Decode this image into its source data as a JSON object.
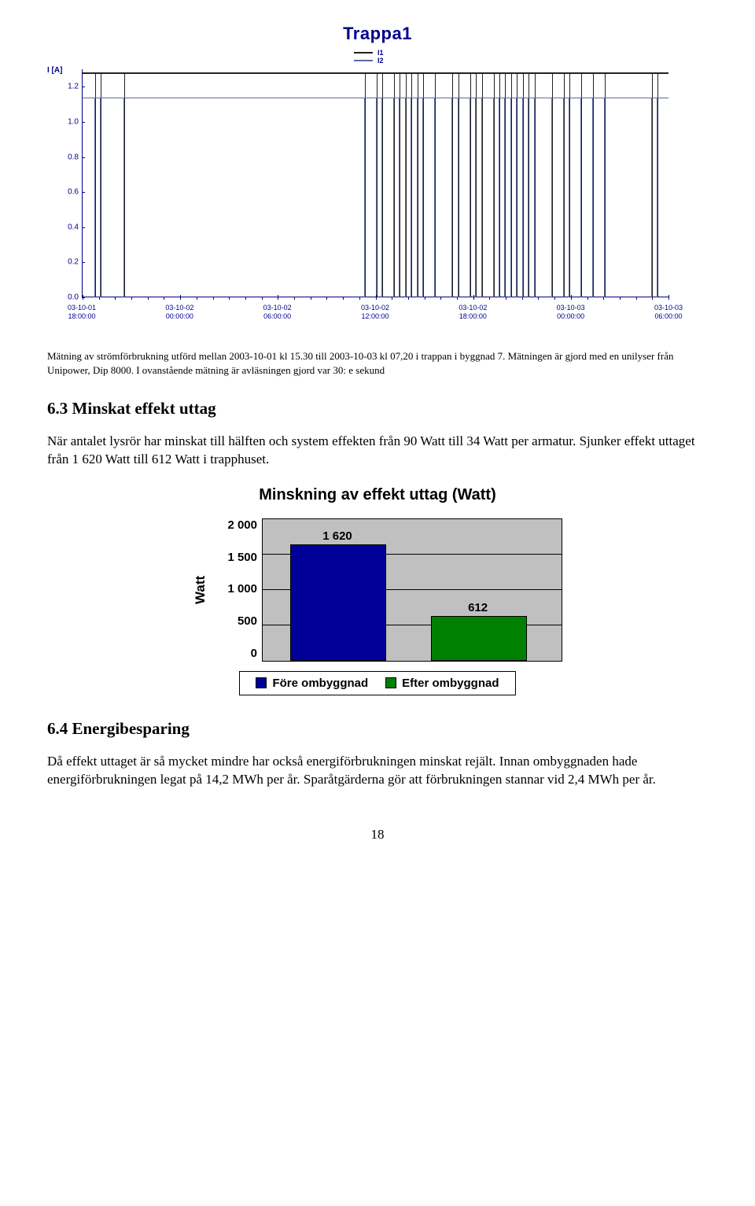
{
  "chart1": {
    "title": "Trappa1",
    "ylabel": "I [A]",
    "legend": [
      {
        "label": "I1",
        "color": "#222222"
      },
      {
        "label": "I2",
        "color": "#5b6aa0"
      }
    ],
    "y_ticks": [
      "1.2",
      "1.0",
      "0.8",
      "0.6",
      "0.4",
      "0.2",
      "0.0"
    ],
    "y_max": 1.3,
    "x_ticks": [
      {
        "date": "03-10-01",
        "time": "18:00:00"
      },
      {
        "date": "03-10-02",
        "time": "00:00:00"
      },
      {
        "date": "03-10-02",
        "time": "06:00:00"
      },
      {
        "date": "03-10-02",
        "time": "12:00:00"
      },
      {
        "date": "03-10-02",
        "time": "18:00:00"
      },
      {
        "date": "03-10-03",
        "time": "00:00:00"
      },
      {
        "date": "03-10-03",
        "time": "06:00:00"
      }
    ],
    "series": [
      {
        "color": "#222222",
        "baseline": 1.28
      },
      {
        "color": "#5b6aa0",
        "baseline": 1.14
      }
    ],
    "spike_positions_pct": [
      2,
      3,
      7,
      48,
      50,
      51,
      53,
      54,
      55,
      56,
      57,
      58,
      60,
      63,
      64,
      66,
      67,
      68,
      70,
      71,
      72,
      73,
      74,
      75,
      76,
      77,
      80,
      82,
      83,
      85,
      87,
      89,
      97,
      98
    ],
    "spike_top_pct": 12,
    "spike_color": "#5b6aa0",
    "axis_color": "#00008b",
    "plot_bg": "#ffffff"
  },
  "caption": "Mätning av strömförbrukning utförd mellan 2003-10-01 kl 15.30 till 2003-10-03 kl 07,20 i trappan i byggnad 7. Mätningen är gjord med en unilyser från Unipower, Dip 8000. I ovanstående mätning är avläsningen gjord var 30: e sekund",
  "sec1": {
    "heading": "6.3 Minskat effekt uttag",
    "body": "När antalet lysrör har minskat till hälften och system effekten från 90 Watt till 34 Watt per armatur. Sjunker effekt uttaget från 1 620 Watt till 612 Watt i trapphuset."
  },
  "chart2": {
    "title": "Minskning av effekt uttag (Watt)",
    "ylabel": "Watt",
    "y_ticks": [
      "2 000",
      "1 500",
      "1 000",
      "500",
      "0"
    ],
    "y_max": 2000,
    "grid_step": 500,
    "plot_bg": "#c0c0c0",
    "bars": [
      {
        "label": "Före ombyggnad",
        "value": 1620,
        "disp": "1 620",
        "color": "#000099"
      },
      {
        "label": "Efter ombyggnad",
        "value": 612,
        "disp": "612",
        "color": "#008000"
      }
    ]
  },
  "sec2": {
    "heading": "6.4 Energibesparing",
    "body": "Då effekt uttaget är så mycket mindre har också energiförbrukningen minskat rejält. Innan ombyggnaden hade energiförbrukningen legat på 14,2 MWh per år. Sparåtgärderna gör att förbrukningen stannar vid 2,4 MWh per år."
  },
  "page_number": "18"
}
